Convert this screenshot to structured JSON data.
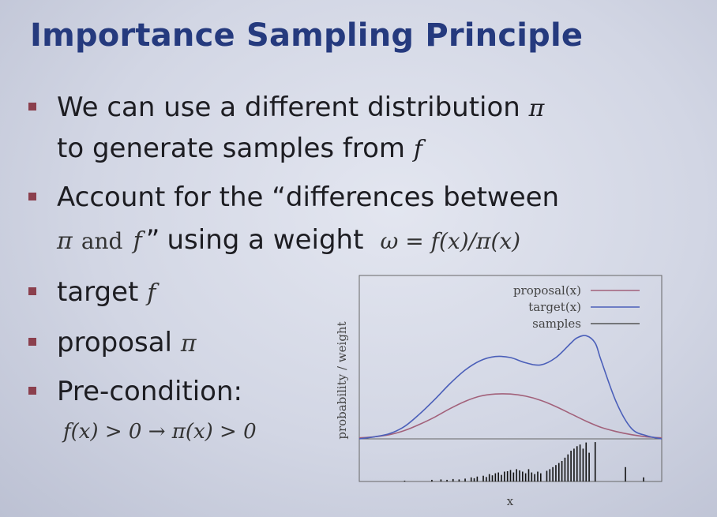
{
  "slide": {
    "title": "Importance Sampling Principle",
    "bullets": [
      {
        "line1": "We can use a different distribution",
        "sym1": "π",
        "line2": "to generate samples from",
        "sym2": "f"
      },
      {
        "line1": "Account for the “differences between",
        "sym_pi": "π",
        "and": "and",
        "sym_f": "f",
        "quote": "”",
        "using": "using a weight",
        "formula": "ω = f(x)/π(x)"
      },
      {
        "label": "target",
        "sym": "f"
      },
      {
        "label": "proposal",
        "sym": "π"
      },
      {
        "label": "Pre-condition:",
        "formula": "f(x) > 0 → π(x) > 0"
      }
    ]
  },
  "chart_data": {
    "type": "line",
    "xlabel": "x",
    "ylabel": "probability / weight",
    "grid": false,
    "legend_position": "top-right",
    "series": [
      {
        "name": "proposal(x)",
        "color": "#a2617a",
        "x": [
          0,
          0.05,
          0.1,
          0.15,
          0.2,
          0.25,
          0.3,
          0.35,
          0.4,
          0.45,
          0.5,
          0.55,
          0.6,
          0.65,
          0.7,
          0.75,
          0.8,
          0.85,
          0.9,
          0.95,
          1.0
        ],
        "y": [
          0.01,
          0.02,
          0.04,
          0.08,
          0.14,
          0.21,
          0.29,
          0.36,
          0.41,
          0.43,
          0.43,
          0.41,
          0.37,
          0.31,
          0.24,
          0.17,
          0.11,
          0.07,
          0.04,
          0.02,
          0.01
        ]
      },
      {
        "name": "target(x)",
        "color": "#4b5fb9",
        "x": [
          0,
          0.05,
          0.1,
          0.15,
          0.2,
          0.25,
          0.3,
          0.35,
          0.4,
          0.45,
          0.5,
          0.55,
          0.6,
          0.65,
          0.7,
          0.72,
          0.75,
          0.78,
          0.8,
          0.85,
          0.9,
          0.95,
          1.0
        ],
        "y": [
          0.0,
          0.02,
          0.05,
          0.12,
          0.24,
          0.38,
          0.53,
          0.66,
          0.75,
          0.79,
          0.78,
          0.73,
          0.71,
          0.78,
          0.92,
          0.97,
          0.99,
          0.92,
          0.75,
          0.35,
          0.1,
          0.03,
          0.0
        ]
      },
      {
        "name": "samples",
        "color": "#555555",
        "type": "impulse",
        "x": [
          0.15,
          0.24,
          0.27,
          0.29,
          0.31,
          0.33,
          0.35,
          0.37,
          0.38,
          0.39,
          0.41,
          0.42,
          0.43,
          0.44,
          0.45,
          0.46,
          0.47,
          0.48,
          0.49,
          0.5,
          0.51,
          0.52,
          0.53,
          0.54,
          0.55,
          0.56,
          0.57,
          0.58,
          0.59,
          0.6,
          0.62,
          0.63,
          0.64,
          0.65,
          0.66,
          0.67,
          0.68,
          0.69,
          0.7,
          0.71,
          0.72,
          0.73,
          0.74,
          0.75,
          0.76,
          0.78,
          0.88,
          0.94
        ],
        "y": [
          0.02,
          0.04,
          0.05,
          0.04,
          0.06,
          0.05,
          0.07,
          0.1,
          0.08,
          0.12,
          0.14,
          0.11,
          0.18,
          0.15,
          0.2,
          0.22,
          0.16,
          0.24,
          0.25,
          0.28,
          0.22,
          0.3,
          0.27,
          0.24,
          0.2,
          0.3,
          0.22,
          0.18,
          0.24,
          0.2,
          0.26,
          0.3,
          0.35,
          0.4,
          0.45,
          0.5,
          0.58,
          0.66,
          0.75,
          0.8,
          0.86,
          0.9,
          0.8,
          0.95,
          0.7,
          0.96,
          0.35,
          0.1
        ]
      }
    ]
  }
}
